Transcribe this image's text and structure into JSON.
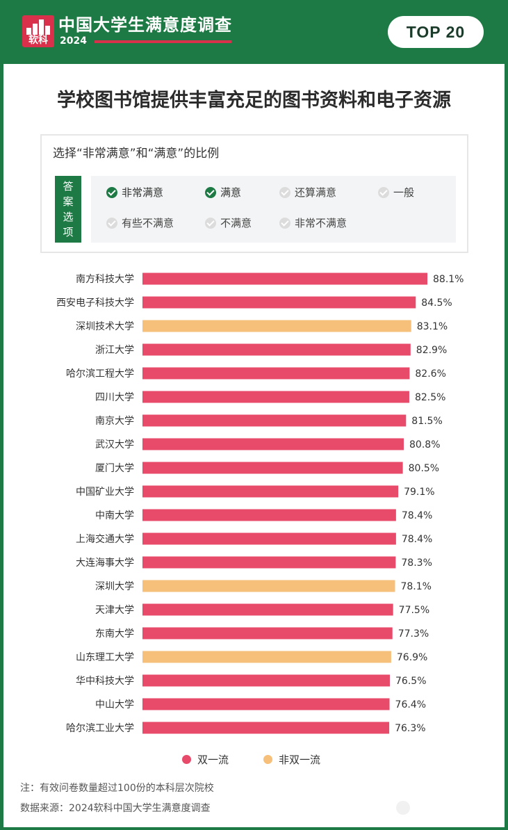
{
  "header": {
    "logo_text": "软科",
    "title": "中国大学生满意度调查",
    "year": "2024",
    "badge": "TOP 20"
  },
  "chart_data": {
    "type": "bar",
    "orientation": "horizontal",
    "title": "学校图书馆提供丰富充足的图书资料和电子资源",
    "subtitle": "选择“非常满意”和“满意”的比例",
    "value_suffix": "%",
    "categories": [
      "南方科技大学",
      "西安电子科技大学",
      "深圳技术大学",
      "浙江大学",
      "哈尔滨工程大学",
      "四川大学",
      "南京大学",
      "武汉大学",
      "厦门大学",
      "中国矿业大学",
      "中南大学",
      "上海交通大学",
      "大连海事大学",
      "深圳大学",
      "天津大学",
      "东南大学",
      "山东理工大学",
      "华中科技大学",
      "中山大学",
      "哈尔滨工业大学"
    ],
    "values": [
      88.1,
      84.5,
      83.1,
      82.9,
      82.6,
      82.5,
      81.5,
      80.8,
      80.5,
      79.1,
      78.4,
      78.4,
      78.3,
      78.1,
      77.5,
      77.3,
      76.9,
      76.5,
      76.4,
      76.3
    ],
    "groups": [
      "双一流",
      "双一流",
      "非双一流",
      "双一流",
      "双一流",
      "双一流",
      "双一流",
      "双一流",
      "双一流",
      "双一流",
      "双一流",
      "双一流",
      "双一流",
      "非双一流",
      "双一流",
      "双一流",
      "非双一流",
      "双一流",
      "双一流",
      "双一流"
    ],
    "legend": [
      {
        "name": "双一流",
        "color": "#e84a6a"
      },
      {
        "name": "非双一流",
        "color": "#f6bf7a"
      }
    ],
    "legend_position": "bottom"
  },
  "answer_options": {
    "tag": "答案选项",
    "items": [
      {
        "label": "非常满意",
        "checked": true
      },
      {
        "label": "满意",
        "checked": true
      },
      {
        "label": "还算满意",
        "checked": false
      },
      {
        "label": "一般",
        "checked": false
      },
      {
        "label": "有些不满意",
        "checked": false
      },
      {
        "label": "不满意",
        "checked": false
      },
      {
        "label": "非常不满意",
        "checked": false
      }
    ]
  },
  "notes": {
    "note": "注：有效问卷数量超过100份的本科层次院校",
    "source": "数据来源：2024软科中国大学生满意度调查"
  },
  "colors": {
    "brand_green": "#1e7a45",
    "brand_red": "#d9304b"
  }
}
